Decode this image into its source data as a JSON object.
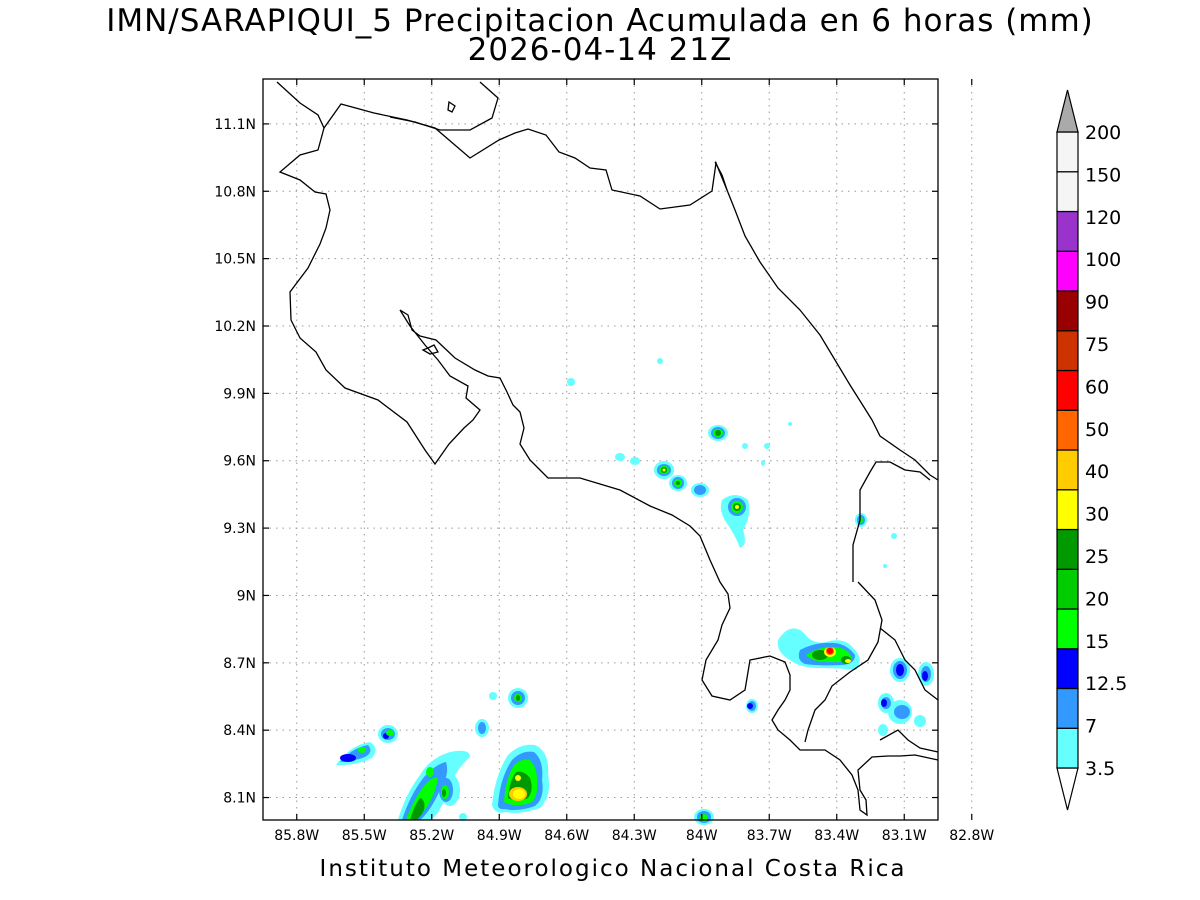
{
  "title": {
    "line1": "IMN/SARAPIQUI_5 Precipitacion Acumulada en 6 horas (mm)",
    "line2": "2026-04-14 21Z"
  },
  "footer": "Instituto Meteorologico Nacional Costa Rica",
  "map": {
    "lon_range": [
      -85.95,
      -82.95
    ],
    "lat_range": [
      8.0,
      11.3
    ],
    "x_ticks": [
      "85.8W",
      "85.5W",
      "85.2W",
      "84.9W",
      "84.6W",
      "84.3W",
      "84W",
      "83.7W",
      "83.4W",
      "83.1W",
      "82.8W"
    ],
    "y_ticks": [
      "8.1N",
      "8.4N",
      "8.7N",
      "9N",
      "9.3N",
      "9.6N",
      "9.9N",
      "10.2N",
      "10.5N",
      "10.8N",
      "11.1N"
    ],
    "grid": "dotted"
  },
  "colorbar": {
    "unit": "mm",
    "labels": [
      "3.5",
      "7",
      "12.5",
      "15",
      "20",
      "25",
      "30",
      "40",
      "50",
      "60",
      "75",
      "90",
      "100",
      "120",
      "150",
      "200"
    ],
    "colors": [
      "#66ffff",
      "#3399ff",
      "#0000ff",
      "#00ff00",
      "#00cc00",
      "#009900",
      "#ffff00",
      "#ffcc00",
      "#ff6600",
      "#ff0000",
      "#cc3300",
      "#990000",
      "#ff00ff",
      "#9933cc",
      "#f5f5f5",
      "#aaaaaa"
    ]
  }
}
